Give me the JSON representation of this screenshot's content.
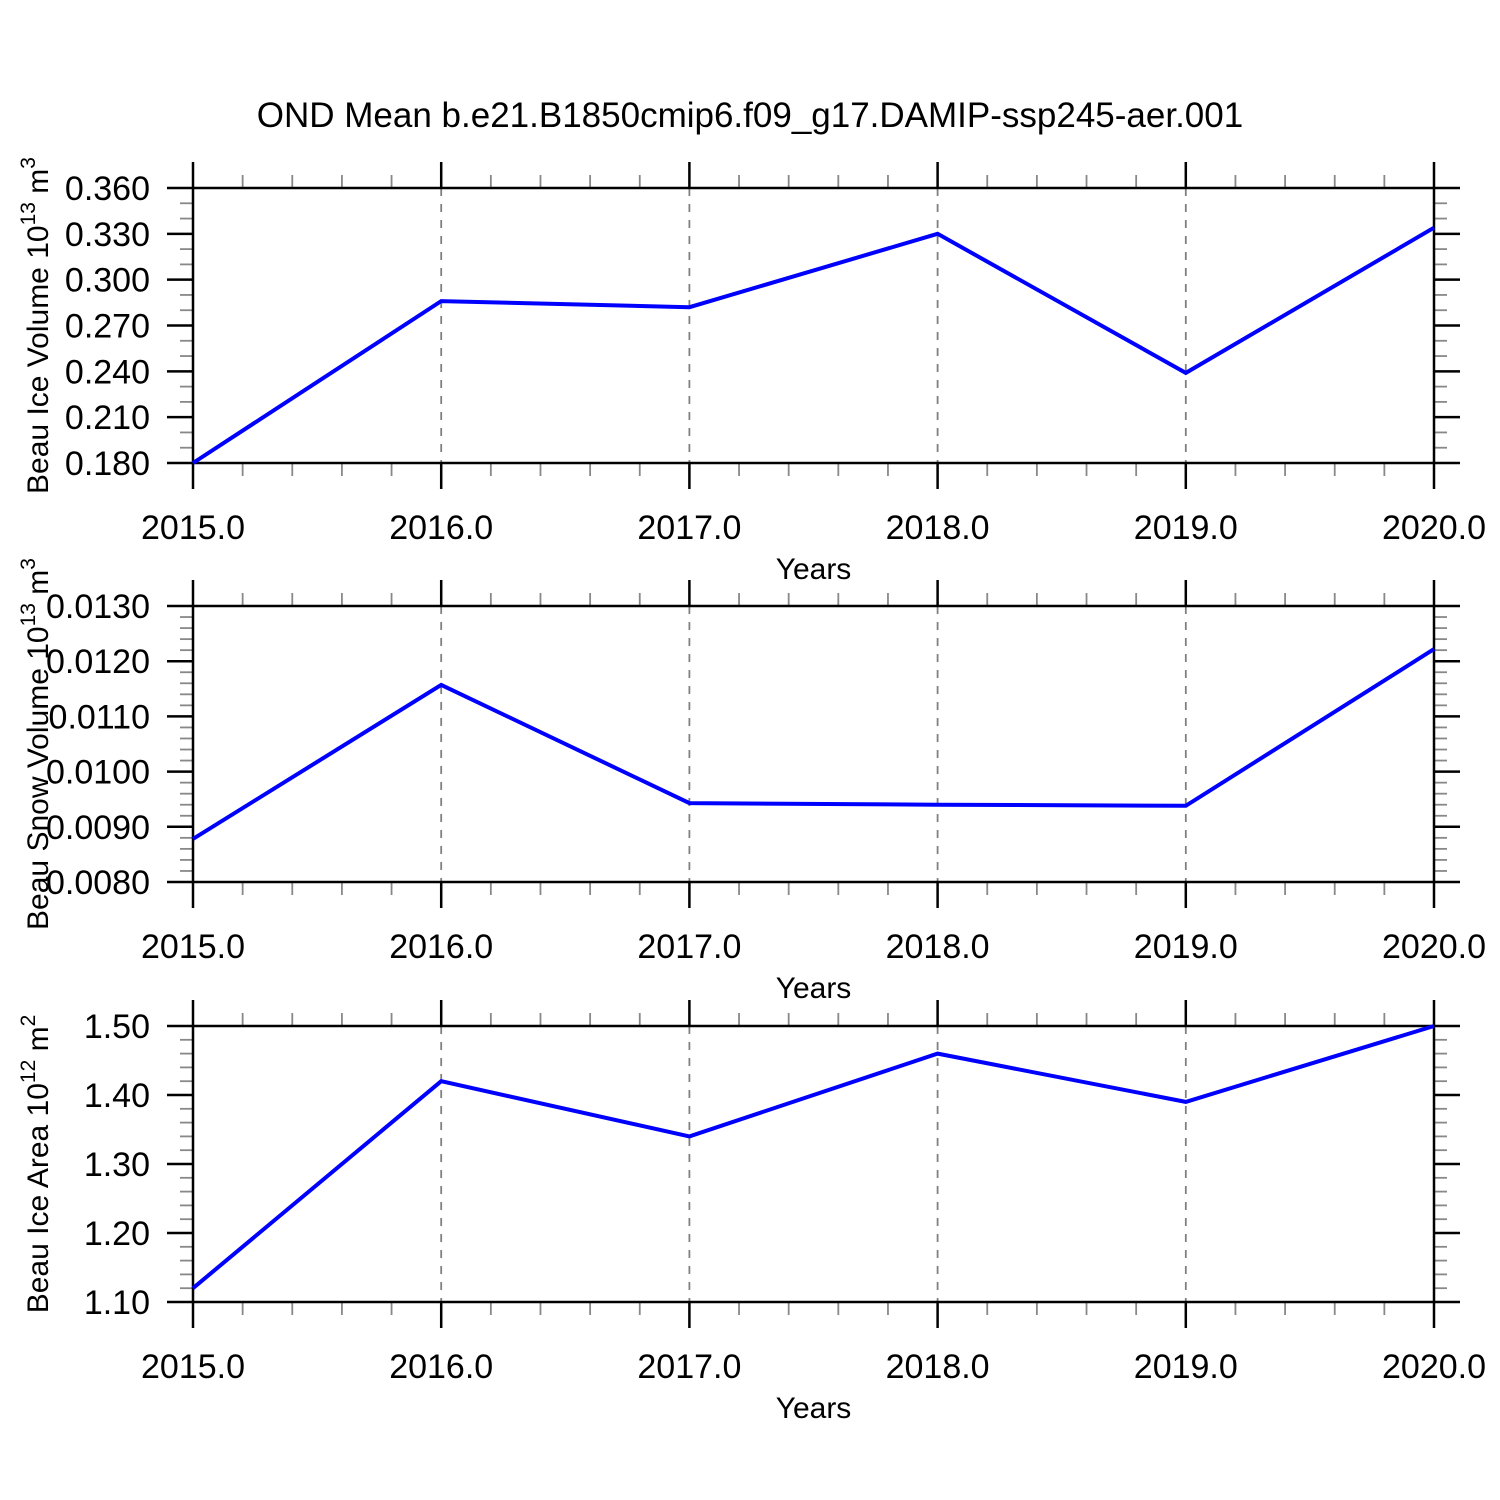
{
  "title": "OND Mean b.e21.B1850cmip6.f09_g17.DAMIP-ssp245-aer.001",
  "colors": {
    "line": "#0000ff",
    "frame": "#000000",
    "major_tick": "#000000",
    "minor_tick": "#888888",
    "gridline": "#808080",
    "text": "#000000"
  },
  "chart_data": [
    {
      "type": "line",
      "id": "beau-ice-volume",
      "xlabel": "Years",
      "ylabel_text": "Beau Ice Volume 10^13 m^3",
      "ylabel_parts": [
        {
          "text": "Beau Ice Volume 10"
        },
        {
          "text": "13",
          "sup": true
        },
        {
          "text": " m"
        },
        {
          "text": "3",
          "sup": true
        }
      ],
      "x": [
        2015,
        2016,
        2017,
        2018,
        2019,
        2020
      ],
      "values": [
        0.18,
        0.286,
        0.282,
        0.33,
        0.239,
        0.334
      ],
      "xlim": [
        2015,
        2020
      ],
      "ylim": [
        0.18,
        0.36
      ],
      "xticks": [
        {
          "value": 2015,
          "label": "2015.0"
        },
        {
          "value": 2016,
          "label": "2016.0"
        },
        {
          "value": 2017,
          "label": "2017.0"
        },
        {
          "value": 2018,
          "label": "2018.0"
        },
        {
          "value": 2019,
          "label": "2019.0"
        },
        {
          "value": 2020,
          "label": "2020.0"
        }
      ],
      "yticks": [
        {
          "value": 0.18,
          "label": "0.180"
        },
        {
          "value": 0.21,
          "label": "0.210"
        },
        {
          "value": 0.24,
          "label": "0.240"
        },
        {
          "value": 0.27,
          "label": "0.270"
        },
        {
          "value": 0.3,
          "label": "0.300"
        },
        {
          "value": 0.33,
          "label": "0.330"
        },
        {
          "value": 0.36,
          "label": "0.360"
        }
      ],
      "x_minor_per_gap": 4,
      "y_minor_per_gap": 2,
      "gridlines_x": [
        2016,
        2017,
        2018,
        2019
      ],
      "grid": "vertical-dashed",
      "legend": "none"
    },
    {
      "type": "line",
      "id": "beau-snow-volume",
      "xlabel": "Years",
      "ylabel_text": "Beau Snow Volume 10^13 m^3",
      "ylabel_parts": [
        {
          "text": "Beau Snow Volume 10"
        },
        {
          "text": "13",
          "sup": true
        },
        {
          "text": " m"
        },
        {
          "text": "3",
          "sup": true
        }
      ],
      "x": [
        2015,
        2016,
        2017,
        2018,
        2019,
        2020
      ],
      "values": [
        0.00878,
        0.01157,
        0.00943,
        0.0094,
        0.00938,
        0.01222
      ],
      "xlim": [
        2015,
        2020
      ],
      "ylim": [
        0.008,
        0.013
      ],
      "xticks": [
        {
          "value": 2015,
          "label": "2015.0"
        },
        {
          "value": 2016,
          "label": "2016.0"
        },
        {
          "value": 2017,
          "label": "2017.0"
        },
        {
          "value": 2018,
          "label": "2018.0"
        },
        {
          "value": 2019,
          "label": "2019.0"
        },
        {
          "value": 2020,
          "label": "2020.0"
        }
      ],
      "yticks": [
        {
          "value": 0.008,
          "label": "0.0080"
        },
        {
          "value": 0.009,
          "label": "0.0090"
        },
        {
          "value": 0.01,
          "label": "0.0100"
        },
        {
          "value": 0.011,
          "label": "0.0110"
        },
        {
          "value": 0.012,
          "label": "0.0120"
        },
        {
          "value": 0.013,
          "label": "0.0130"
        }
      ],
      "x_minor_per_gap": 4,
      "y_minor_per_gap": 4,
      "gridlines_x": [
        2016,
        2017,
        2018,
        2019
      ],
      "grid": "vertical-dashed",
      "legend": "none"
    },
    {
      "type": "line",
      "id": "beau-ice-area",
      "xlabel": "Years",
      "ylabel_text": "Beau Ice Area 10^12 m^2",
      "ylabel_parts": [
        {
          "text": "Beau Ice Area 10"
        },
        {
          "text": "12",
          "sup": true
        },
        {
          "text": " m"
        },
        {
          "text": "2",
          "sup": true
        }
      ],
      "x": [
        2015,
        2016,
        2017,
        2018,
        2019,
        2020
      ],
      "values": [
        1.12,
        1.42,
        1.34,
        1.46,
        1.39,
        1.5
      ],
      "xlim": [
        2015,
        2020
      ],
      "ylim": [
        1.1,
        1.5
      ],
      "xticks": [
        {
          "value": 2015,
          "label": "2015.0"
        },
        {
          "value": 2016,
          "label": "2016.0"
        },
        {
          "value": 2017,
          "label": "2017.0"
        },
        {
          "value": 2018,
          "label": "2018.0"
        },
        {
          "value": 2019,
          "label": "2019.0"
        },
        {
          "value": 2020,
          "label": "2020.0"
        }
      ],
      "yticks": [
        {
          "value": 1.1,
          "label": "1.10"
        },
        {
          "value": 1.2,
          "label": "1.20"
        },
        {
          "value": 1.3,
          "label": "1.30"
        },
        {
          "value": 1.4,
          "label": "1.40"
        },
        {
          "value": 1.5,
          "label": "1.50"
        }
      ],
      "x_minor_per_gap": 4,
      "y_minor_per_gap": 4,
      "gridlines_x": [
        2016,
        2017,
        2018,
        2019
      ],
      "grid": "vertical-dashed",
      "legend": "none"
    }
  ]
}
